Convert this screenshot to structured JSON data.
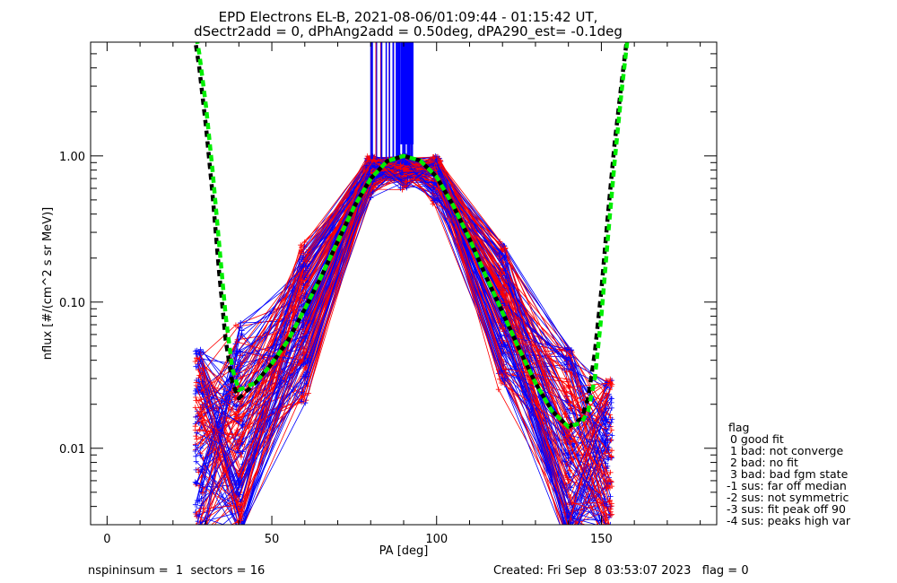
{
  "chart_data": {
    "type": "line",
    "title": "EPD Electrons EL-B, 2021-08-06/01:09:44 - 01:15:42 UT,",
    "subtitle": "dSectr2add = 0, dPhAng2add = 0.50deg, dPA290_est=  -0.1deg",
    "xlabel": "PA [deg]",
    "ylabel": "nflux [#/(cm^2 s sr MeV)]",
    "xlim": [
      -5,
      185
    ],
    "ylim": [
      0.003,
      6
    ],
    "y_scale": "log",
    "x_ticks": [
      0,
      50,
      100,
      150
    ],
    "x_tick_labels": [
      "0",
      "50",
      "100",
      "150"
    ],
    "y_ticks": [
      0.01,
      0.1,
      1.0
    ],
    "y_tick_labels": [
      "0.01",
      "0.10",
      "1.00"
    ],
    "grid": false,
    "colors": {
      "measured_a": "#0000ff",
      "measured_b": "#ff0000",
      "fit_black": "#000000",
      "fit_green": "#00ee00"
    },
    "spread_profile": {
      "x": [
        28,
        40,
        60,
        80,
        90,
        100,
        120,
        140,
        152
      ],
      "y_low": [
        0.002,
        0.0025,
        0.02,
        0.5,
        0.55,
        0.45,
        0.025,
        0.002,
        0.002
      ],
      "y_high": [
        0.05,
        0.08,
        0.26,
        1.0,
        1.0,
        1.0,
        0.26,
        0.05,
        0.03
      ]
    },
    "fit_curves": [
      {
        "color": "black",
        "x": [
          26,
          28,
          30,
          32,
          34,
          36,
          38,
          40,
          45,
          50,
          55,
          60,
          65,
          70,
          75,
          80,
          85,
          90,
          95,
          100,
          105,
          110,
          115,
          120,
          125,
          130,
          135,
          140,
          144,
          146,
          148,
          150,
          152,
          154,
          156,
          158
        ],
        "y": [
          8,
          4,
          1.6,
          0.55,
          0.16,
          0.055,
          0.028,
          0.022,
          0.028,
          0.038,
          0.055,
          0.09,
          0.15,
          0.26,
          0.45,
          0.7,
          0.92,
          1.0,
          0.93,
          0.72,
          0.46,
          0.27,
          0.15,
          0.085,
          0.048,
          0.028,
          0.018,
          0.014,
          0.016,
          0.022,
          0.045,
          0.12,
          0.4,
          1.2,
          3.0,
          7.0
        ]
      },
      {
        "color": "green",
        "x": [
          26,
          28,
          30,
          32,
          34,
          36,
          38,
          40,
          45,
          50,
          55,
          60,
          65,
          70,
          75,
          80,
          85,
          90,
          95,
          100,
          105,
          110,
          115,
          120,
          125,
          130,
          135,
          140,
          144,
          146,
          148,
          150,
          152,
          154,
          156,
          158
        ],
        "y": [
          9,
          5,
          2.2,
          0.8,
          0.25,
          0.08,
          0.035,
          0.025,
          0.028,
          0.038,
          0.055,
          0.09,
          0.15,
          0.26,
          0.45,
          0.7,
          0.92,
          1.0,
          0.93,
          0.72,
          0.46,
          0.27,
          0.15,
          0.085,
          0.048,
          0.028,
          0.018,
          0.014,
          0.015,
          0.018,
          0.03,
          0.08,
          0.28,
          0.9,
          2.6,
          6.5
        ]
      }
    ]
  },
  "legend": {
    "title": "flag",
    "items": [
      " 0 good fit",
      " 1 bad: not converge",
      " 2 bad: no fit",
      " 3 bad: bad fgm state",
      "-1 sus: far off median",
      "-2 sus: not symmetric",
      "-3 sus: fit peak off 90",
      "-4 sus: peaks high var"
    ]
  },
  "footer": {
    "left": "nspininsum =  1  sectors = 16",
    "right": "Created: Fri Sep  8 03:53:07 2023   flag = 0"
  }
}
